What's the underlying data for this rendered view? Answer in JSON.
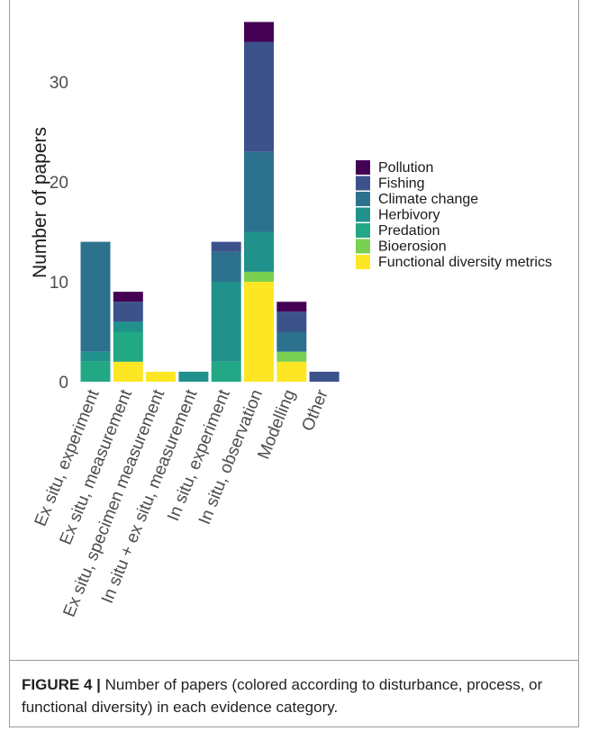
{
  "chart_data": {
    "type": "bar",
    "stacked": true,
    "title": "",
    "xlabel": "",
    "ylabel": "Number of papers",
    "ylim": [
      0,
      36
    ],
    "yticks": [
      0,
      10,
      20,
      30
    ],
    "grid": false,
    "legend_position": "right",
    "categories": [
      "Ex situ, experiment",
      "Ex situ, measurement",
      "Ex situ, specimen measurement",
      "In situ + ex situ, measurement",
      "In situ, experiment",
      "In situ, observation",
      "Modelling",
      "Other"
    ],
    "series": [
      {
        "name": "Functional diversity metrics",
        "color": "#fde725",
        "values": [
          0,
          2,
          1,
          0,
          0,
          10,
          2,
          0
        ]
      },
      {
        "name": "Bioerosion",
        "color": "#7ad151",
        "values": [
          0,
          0,
          0,
          0,
          0,
          1,
          1,
          0
        ]
      },
      {
        "name": "Predation",
        "color": "#22a884",
        "values": [
          2,
          3,
          0,
          0,
          2,
          0,
          0,
          0
        ]
      },
      {
        "name": "Herbivory",
        "color": "#21918c",
        "values": [
          1,
          1,
          0,
          1,
          8,
          4,
          0,
          0
        ]
      },
      {
        "name": "Climate change",
        "color": "#2c728e",
        "values": [
          11,
          0,
          0,
          0,
          3,
          8,
          2,
          0
        ]
      },
      {
        "name": "Fishing",
        "color": "#3b528b",
        "values": [
          0,
          2,
          0,
          0,
          1,
          11,
          2,
          1
        ]
      },
      {
        "name": "Pollution",
        "color": "#440154",
        "values": [
          0,
          1,
          0,
          0,
          0,
          2,
          1,
          0
        ]
      }
    ],
    "legend_order": [
      "Pollution",
      "Fishing",
      "Climate change",
      "Herbivory",
      "Predation",
      "Bioerosion",
      "Functional diversity metrics"
    ]
  },
  "caption": {
    "label": "FIGURE 4 |",
    "text": " Number of papers (colored according to disturbance, process, or functional diversity) in each evidence category."
  }
}
